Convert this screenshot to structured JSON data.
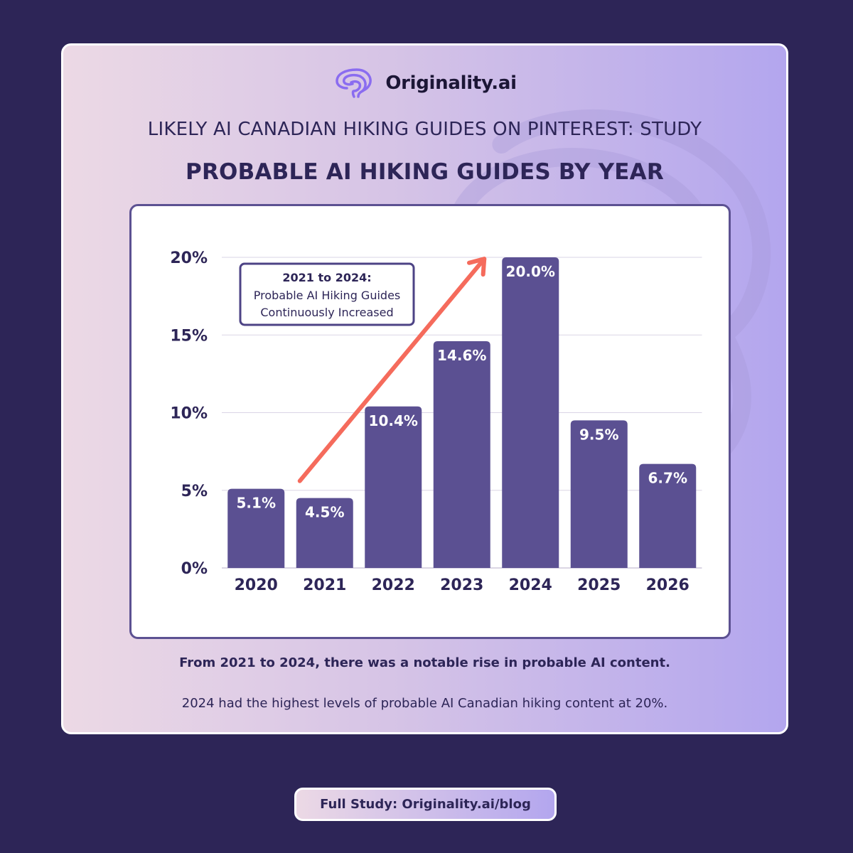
{
  "brand": {
    "name": "Originality.ai",
    "icon": "brain-icon"
  },
  "header": {
    "subtitle": "LIKELY AI CANADIAN HIKING GUIDES ON PINTEREST: STUDY",
    "title": "PROBABLE AI HIKING GUIDES BY YEAR"
  },
  "chart_data": {
    "type": "bar",
    "categories": [
      "2020",
      "2021",
      "2022",
      "2023",
      "2024",
      "2025",
      "2026"
    ],
    "values": [
      5.1,
      4.5,
      10.4,
      14.6,
      20.0,
      9.5,
      6.7
    ],
    "value_labels": [
      "5.1%",
      "4.5%",
      "10.4%",
      "14.6%",
      "20.0%",
      "9.5%",
      "6.7%"
    ],
    "y_ticks": [
      0,
      5,
      10,
      15,
      20
    ],
    "y_tick_labels": [
      "0%",
      "5%",
      "10%",
      "15%",
      "20%"
    ],
    "ylim": [
      0,
      20
    ],
    "grid": true,
    "bar_color": "#5b5092",
    "annotation": {
      "title": "2021 to 2024:",
      "lines": [
        "Probable AI Hiking Guides",
        "Continuously Increased"
      ],
      "arrow_color": "#f56b5c",
      "arrow_from": {
        "x": "2021",
        "y": 5.6
      },
      "arrow_to": {
        "x": "2024",
        "y": 19.9
      }
    }
  },
  "notes": {
    "bold": "From 2021 to 2024, there was a notable rise in probable AI content.",
    "regular": "2024 had the highest levels of probable AI Canadian hiking content at 20%."
  },
  "footer": {
    "label": "Full Study: Originality.ai/blog"
  }
}
